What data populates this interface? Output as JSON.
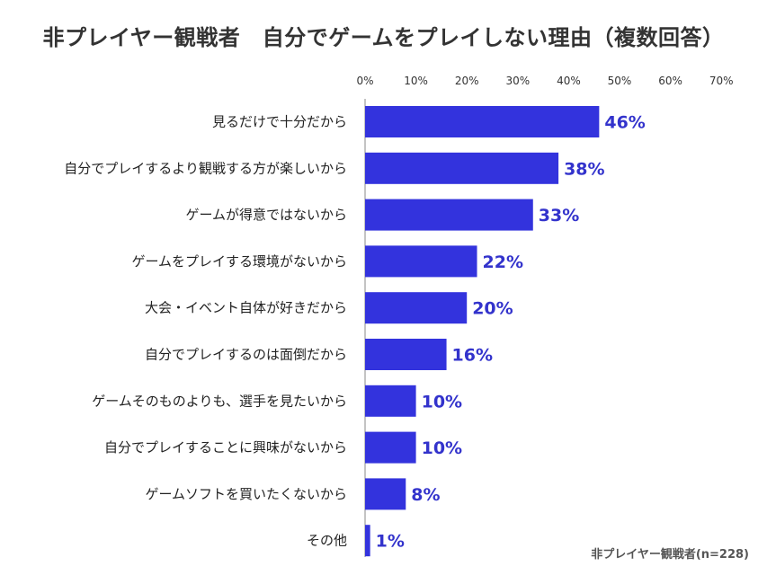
{
  "chart_data": {
    "type": "bar",
    "orientation": "horizontal",
    "title": "非プレイヤー観戦者　自分でゲームをプレイしない理由（複数回答）",
    "categories": [
      "見るだけで十分だから",
      "自分でプレイするより観戦する方が楽しいから",
      "ゲームが得意ではないから",
      "ゲームをプレイする環境がないから",
      "大会・イベント自体が好きだから",
      "自分でプレイするのは面倒だから",
      "ゲームそのものよりも、選手を見たいから",
      "自分でプレイすることに興味がないから",
      "ゲームソフトを買いたくないから",
      "その他"
    ],
    "values": [
      46,
      38,
      33,
      22,
      20,
      16,
      10,
      10,
      8,
      1
    ],
    "data_labels": [
      "46%",
      "38%",
      "33%",
      "22%",
      "20%",
      "16%",
      "10%",
      "10%",
      "8%",
      "1%"
    ],
    "xlim": [
      0,
      70
    ],
    "ticks": [
      0,
      10,
      20,
      30,
      40,
      50,
      60,
      70
    ],
    "tick_labels": [
      "0%",
      "10%",
      "20%",
      "30%",
      "40%",
      "50%",
      "60%",
      "70%"
    ],
    "axis_position": "top",
    "grid": false,
    "bar_color": "#3333dd",
    "label_color": "#3333cc",
    "note": "非プレイヤー観戦者(n=228)"
  }
}
